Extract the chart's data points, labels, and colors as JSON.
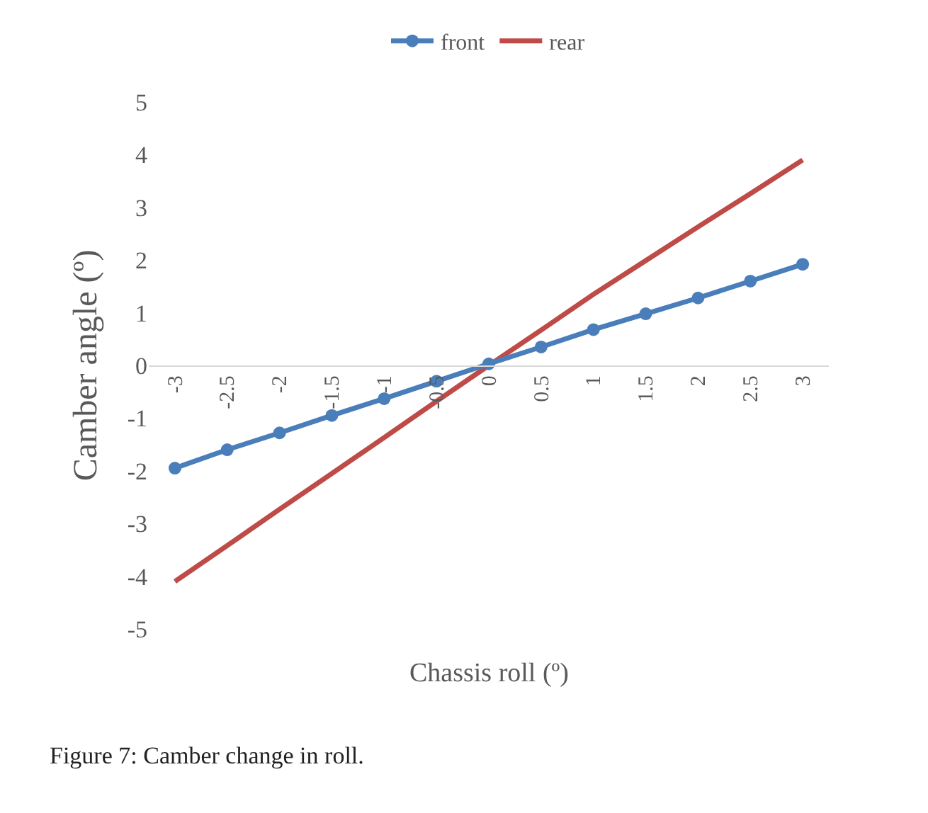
{
  "chart_data": {
    "type": "line",
    "xlabel": "Chassis roll (º)",
    "ylabel": "Camber angle (º)",
    "categories": [
      "-3",
      "-2.5",
      "-2",
      "-1.5",
      "-1",
      "-0.5",
      "0",
      "0.5",
      "1",
      "1.5",
      "2",
      "2.5",
      "3"
    ],
    "series": [
      {
        "name": "front",
        "color": "#4a7ebb",
        "marker": "circle",
        "values": [
          -1.95,
          -1.6,
          -1.28,
          -0.95,
          -0.63,
          -0.3,
          0.03,
          0.35,
          0.68,
          0.98,
          1.28,
          1.6,
          1.92
        ]
      },
      {
        "name": "rear",
        "color": "#be4b48",
        "marker": "none",
        "values": [
          -4.1,
          -3.42,
          -2.73,
          -2.05,
          -1.37,
          -0.68,
          0,
          0.67,
          1.35,
          1.99,
          2.63,
          3.26,
          3.9
        ]
      }
    ],
    "ylim": [
      -5,
      5
    ],
    "yticks": [
      -5,
      -4,
      -3,
      -2,
      -1,
      0,
      1,
      2,
      3,
      4,
      5
    ],
    "legend": "top",
    "annotations": [
      "Figure 7: Camber change in roll."
    ]
  }
}
